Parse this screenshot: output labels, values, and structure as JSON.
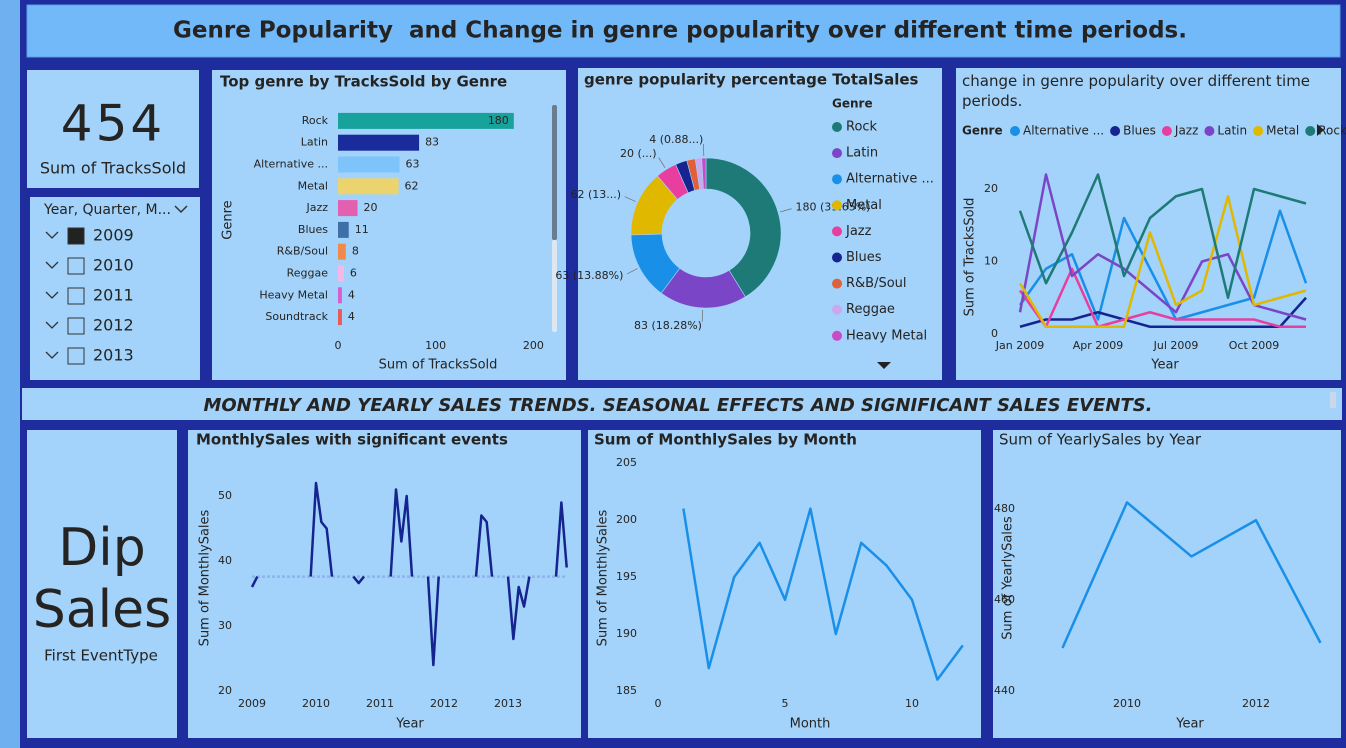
{
  "header": {
    "title": "Genre Popularity  and Change in genre popularity over different time periods."
  },
  "cards": [
    {
      "value": 454,
      "label": "Sum of TracksSold"
    },
    {
      "value": "Dip Sales",
      "label": "First EventType"
    }
  ],
  "slicer": {
    "title": "Year, Quarter, M...",
    "items": [
      "2009",
      "2010",
      "2011",
      "2012",
      "2013"
    ],
    "checked": [
      true,
      false,
      false,
      false,
      false
    ]
  },
  "section_title": "MONTHLY AND YEARLY SALES TRENDS. SEASONAL EFFECTS AND SIGNIFICANT SALES EVENTS.",
  "chart_data": [
    {
      "type": "bar",
      "orientation": "horizontal",
      "title": "Top genre by TracksSold by Genre",
      "x_label": "Sum of TracksSold",
      "y_label": "Genre",
      "categories": [
        "Rock",
        "Latin",
        "Alternative ...",
        "Metal",
        "Jazz",
        "Blues",
        "R&B/Soul",
        "Reggae",
        "Heavy Metal",
        "Soundtrack"
      ],
      "values": [
        180,
        83,
        63,
        62,
        20,
        11,
        8,
        6,
        4,
        4
      ],
      "colors": [
        "#17a39b",
        "#1a2c9c",
        "#7cc4fa",
        "#ebd46e",
        "#e35fb0",
        "#3f6fa8",
        "#f08a4b",
        "#f5b8e6",
        "#d65fd0",
        "#e85a5a"
      ],
      "xlim": [
        0,
        215
      ],
      "xticks": [
        0,
        100,
        200
      ]
    },
    {
      "type": "pie",
      "hole": true,
      "title": "genre popularity percentage TotalSales",
      "legend_title": "Genre",
      "categories": [
        "Rock",
        "Latin",
        "Alternative ...",
        "Metal",
        "Jazz",
        "Blues",
        "R&B/Soul",
        "Reggae",
        "Heavy Metal"
      ],
      "values": [
        180,
        83,
        63,
        62,
        20,
        11,
        8,
        6,
        4
      ],
      "value_labels": [
        "180 (39.65%)",
        "83 (18.28%)",
        "63 (13.88%)",
        "62 (13...)",
        "20 (...)",
        null,
        null,
        null,
        "4 (0.88...)"
      ],
      "colors": [
        "#1d7a76",
        "#7b45c8",
        "#1a8fe8",
        "#e0b800",
        "#e83ea0",
        "#15248f",
        "#e0603a",
        "#c9a8f0",
        "#c94ac8"
      ]
    },
    {
      "type": "line",
      "title": "change in genre popularity over different time periods.",
      "legend_title": "Genre",
      "x_label": "Year",
      "y_label": "Sum of TracksSold",
      "x": [
        1,
        2,
        3,
        4,
        5,
        6,
        7,
        8,
        9,
        10,
        11,
        12
      ],
      "xlim": [
        1,
        12
      ],
      "xticks": [
        {
          "value": 1,
          "label": "Jan 2009"
        },
        {
          "value": 4,
          "label": "Apr 2009"
        },
        {
          "value": 7,
          "label": "Jul 2009"
        },
        {
          "value": 10,
          "label": "Oct 2009"
        }
      ],
      "ylim": [
        0,
        25
      ],
      "yticks": [
        0,
        10,
        20
      ],
      "series": [
        {
          "name": "Alternative ...",
          "color": "#1a8fe8",
          "values": [
            4,
            9,
            11,
            2,
            16,
            9,
            2,
            3,
            4,
            5,
            17,
            7
          ]
        },
        {
          "name": "Blues",
          "color": "#15248f",
          "values": [
            1,
            2,
            2,
            3,
            2,
            1,
            1,
            1,
            1,
            1,
            1,
            5
          ]
        },
        {
          "name": "Jazz",
          "color": "#e83ea0",
          "values": [
            6,
            1,
            9,
            1,
            2,
            3,
            2,
            2,
            2,
            2,
            1,
            1
          ]
        },
        {
          "name": "Latin",
          "color": "#7b45c8",
          "values": [
            3,
            22,
            8,
            11,
            9,
            6,
            3,
            10,
            11,
            4,
            3,
            2
          ]
        },
        {
          "name": "Metal",
          "color": "#e0b800",
          "values": [
            7,
            1,
            1,
            1,
            1,
            14,
            4,
            6,
            19,
            4,
            5,
            6
          ]
        },
        {
          "name": "Rock",
          "color": "#1d7a76",
          "values": [
            17,
            7,
            14,
            22,
            8,
            16,
            19,
            20,
            5,
            20,
            19,
            18
          ]
        }
      ]
    },
    {
      "type": "line",
      "title": "MonthlySales with significant events",
      "x_label": "Year",
      "y_label": "Sum of MonthlySales",
      "x": [
        0,
        1,
        2,
        3,
        4,
        5,
        6,
        7,
        8,
        9,
        10,
        11,
        12,
        13,
        14,
        15,
        16,
        17,
        18,
        19,
        20,
        21,
        22,
        23,
        24,
        25,
        26,
        27,
        28,
        29,
        30,
        31,
        32,
        33,
        34,
        35,
        36,
        37,
        38,
        39,
        40,
        41,
        42,
        43,
        44,
        45,
        46,
        47,
        48,
        49,
        50,
        51,
        52,
        53,
        54,
        55,
        56,
        57,
        58,
        59
      ],
      "xlim": [
        0,
        59
      ],
      "xticks": [
        {
          "value": 0,
          "label": "2009"
        },
        {
          "value": 12,
          "label": "2010"
        },
        {
          "value": 24,
          "label": "2011"
        },
        {
          "value": 36,
          "label": "2012"
        },
        {
          "value": 48,
          "label": "2013"
        }
      ],
      "ylim": [
        20,
        55
      ],
      "yticks": [
        20,
        30,
        40,
        50
      ],
      "series": [
        {
          "color": "#8fb4ec",
          "line_style": "dashed",
          "values": [
            37.6,
            37.6,
            37.6,
            37.6,
            37.6,
            37.6,
            37.6,
            37.6,
            37.6,
            37.6,
            37.6,
            37.6,
            37.6,
            37.6,
            37.6,
            37.6,
            37.6,
            37.6,
            37.6,
            37.6,
            37.6,
            37.6,
            37.6,
            37.6,
            37.6,
            37.6,
            37.6,
            37.6,
            37.6,
            37.6,
            37.6,
            37.6,
            37.6,
            37.6,
            37.6,
            37.6,
            37.6,
            37.6,
            37.6,
            37.6,
            37.6,
            37.6,
            37.6,
            37.6,
            37.6,
            37.6,
            37.6,
            37.6,
            37.6,
            37.6,
            37.6,
            37.6,
            37.6,
            37.6,
            37.6,
            37.6,
            37.6,
            37.6,
            37.6,
            37.6
          ]
        },
        {
          "color": "#15248f",
          "line_style": "solid",
          "values": [
            36,
            37.6,
            null,
            null,
            null,
            null,
            null,
            null,
            null,
            null,
            null,
            37.6,
            52,
            46,
            45,
            37.6,
            null,
            null,
            null,
            37.6,
            36.6,
            37.6,
            null,
            null,
            null,
            null,
            37.6,
            51,
            43,
            50,
            37.6,
            null,
            null,
            37.6,
            24,
            37.6,
            null,
            null,
            null,
            null,
            null,
            null,
            37.6,
            47,
            46,
            37.6,
            null,
            null,
            37.6,
            28,
            36,
            33,
            37.6,
            null,
            null,
            null,
            null,
            37.6,
            49,
            39
          ]
        }
      ]
    },
    {
      "type": "line",
      "title": "Sum of MonthlySales by Month",
      "x_label": "Month",
      "y_label": "Sum of MonthlySales",
      "x": [
        1,
        2,
        3,
        4,
        5,
        6,
        7,
        8,
        9,
        10,
        11,
        12
      ],
      "xlim": [
        0,
        12
      ],
      "xticks": [
        0,
        5,
        10
      ],
      "ylim": [
        185,
        205
      ],
      "yticks": [
        185,
        190,
        195,
        200,
        205
      ],
      "series": [
        {
          "color": "#1a8fe8",
          "values": [
            201,
            187,
            195,
            198,
            193,
            201,
            190,
            198,
            196,
            193,
            186,
            189
          ]
        }
      ]
    },
    {
      "type": "line",
      "title": "Sum of YearlySales by Year",
      "x_label": "Year",
      "y_label": "Sum of YearlySales",
      "x": [
        2009,
        2010,
        2011,
        2012,
        2013
      ],
      "xlim": [
        2008.6,
        2013.3
      ],
      "xticks": [
        2010,
        2012
      ],
      "ylim": [
        440,
        492
      ],
      "yticks": [
        440,
        460,
        480
      ],
      "series": [
        {
          "color": "#1a8fe8",
          "values": [
            449.46,
            481.45,
            469.58,
            477.53,
            450.58
          ]
        }
      ]
    }
  ]
}
